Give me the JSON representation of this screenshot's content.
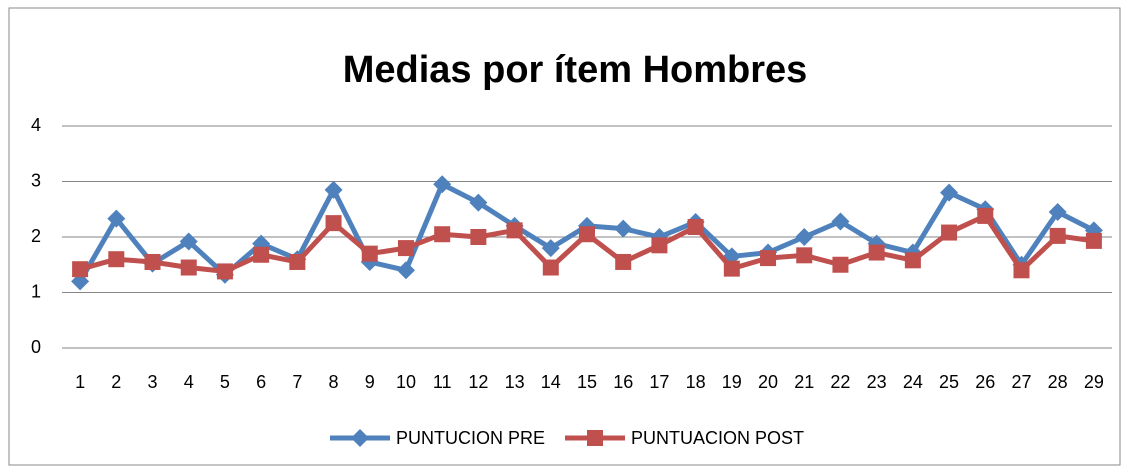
{
  "chart_data": {
    "type": "line",
    "title": "Medias por ítem Hombres",
    "categories": [
      "1",
      "2",
      "3",
      "4",
      "5",
      "6",
      "7",
      "8",
      "9",
      "10",
      "11",
      "12",
      "13",
      "14",
      "15",
      "16",
      "17",
      "18",
      "19",
      "20",
      "21",
      "22",
      "23",
      "24",
      "25",
      "26",
      "27",
      "28",
      "29"
    ],
    "series": [
      {
        "name": "PUNTUCION PRE",
        "color": "#4f81bd",
        "marker": "diamond",
        "values": [
          1.2,
          2.33,
          1.52,
          1.92,
          1.32,
          1.88,
          1.6,
          2.85,
          1.55,
          1.4,
          2.95,
          2.62,
          2.2,
          1.8,
          2.2,
          2.15,
          2.0,
          2.27,
          1.65,
          1.72,
          2.0,
          2.28,
          1.88,
          1.72,
          2.8,
          2.5,
          1.5,
          2.45,
          2.12
        ]
      },
      {
        "name": "PUNTUACION POST",
        "color": "#c0504d",
        "marker": "square",
        "values": [
          1.42,
          1.6,
          1.55,
          1.45,
          1.38,
          1.68,
          1.55,
          2.25,
          1.7,
          1.8,
          2.05,
          2.0,
          2.12,
          1.45,
          2.05,
          1.55,
          1.85,
          2.18,
          1.43,
          1.62,
          1.67,
          1.5,
          1.72,
          1.58,
          2.08,
          2.38,
          1.4,
          2.02,
          1.93
        ]
      }
    ],
    "ylim": [
      0,
      4
    ],
    "yticks": [
      0,
      1,
      2,
      3,
      4
    ],
    "grid": true,
    "legend": "bottom"
  }
}
